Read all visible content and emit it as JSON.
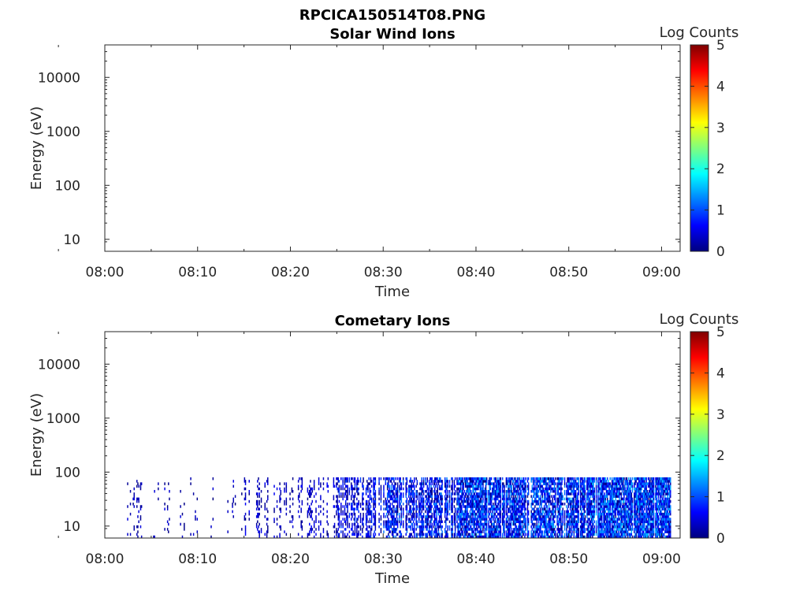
{
  "figure": {
    "title": "RPCICA150514T08.PNG"
  },
  "colors": {
    "colormap": [
      "#00007f",
      "#0000ff",
      "#007fff",
      "#00ffff",
      "#7fff7f",
      "#ffff00",
      "#ff7f00",
      "#ff0000",
      "#7f0000"
    ],
    "axis": "#262626"
  },
  "chart_data": [
    {
      "type": "heatmap",
      "title": "Solar Wind Ions",
      "xlabel": "Time",
      "ylabel": "Energy (eV)",
      "x_ticks": [
        "08:00",
        "08:10",
        "08:20",
        "08:30",
        "08:40",
        "08:50",
        "09:00"
      ],
      "y_ticks": [
        "10",
        "100",
        "1000",
        "10000"
      ],
      "y_scale": "log",
      "xlim": [
        "08:00",
        "09:02"
      ],
      "ylim": [
        6,
        40000
      ],
      "colorbar": {
        "label": "Log Counts",
        "range": [
          0,
          5
        ],
        "ticks": [
          "0",
          "1",
          "2",
          "3",
          "4",
          "5"
        ]
      },
      "grid": false,
      "energy_range": [
        6,
        80
      ],
      "activity": []
    },
    {
      "type": "heatmap",
      "title": "Cometary Ions",
      "xlabel": "Time",
      "ylabel": "Energy (eV)",
      "x_ticks": [
        "08:00",
        "08:10",
        "08:20",
        "08:30",
        "08:40",
        "08:50",
        "09:00"
      ],
      "y_ticks": [
        "10",
        "100",
        "1000",
        "10000"
      ],
      "y_scale": "log",
      "xlim": [
        "08:00",
        "09:02"
      ],
      "ylim": [
        6,
        40000
      ],
      "colorbar": {
        "label": "Log Counts",
        "range": [
          0,
          5
        ],
        "ticks": [
          "0",
          "1",
          "2",
          "3",
          "4",
          "5"
        ]
      },
      "grid": false,
      "energy_range": [
        6,
        80
      ],
      "activity": [
        {
          "t_start": "08:02",
          "t_end": "08:04",
          "density": 0.25,
          "log_counts": [
            0.0,
            0.5
          ]
        },
        {
          "t_start": "08:05",
          "t_end": "08:07",
          "density": 0.15,
          "log_counts": [
            0.0,
            0.5
          ]
        },
        {
          "t_start": "08:08",
          "t_end": "08:12",
          "density": 0.12,
          "log_counts": [
            0.0,
            0.5
          ]
        },
        {
          "t_start": "08:12",
          "t_end": "08:15",
          "density": 0.15,
          "log_counts": [
            0.0,
            0.5
          ]
        },
        {
          "t_start": "08:15",
          "t_end": "08:19",
          "density": 0.3,
          "log_counts": [
            0.0,
            0.6
          ]
        },
        {
          "t_start": "08:19",
          "t_end": "08:22",
          "density": 0.25,
          "log_counts": [
            0.0,
            0.6
          ]
        },
        {
          "t_start": "08:22",
          "t_end": "08:25",
          "density": 0.35,
          "log_counts": [
            0.0,
            0.7
          ]
        },
        {
          "t_start": "08:25",
          "t_end": "08:30",
          "density": 0.55,
          "log_counts": [
            0.0,
            1.0
          ]
        },
        {
          "t_start": "08:30",
          "t_end": "08:38",
          "density": 0.65,
          "log_counts": [
            0.0,
            1.3
          ]
        },
        {
          "t_start": "08:38",
          "t_end": "08:45",
          "density": 0.8,
          "log_counts": [
            0.0,
            1.5
          ]
        },
        {
          "t_start": "08:45",
          "t_end": "08:52",
          "density": 0.75,
          "log_counts": [
            0.0,
            1.5
          ]
        },
        {
          "t_start": "08:52",
          "t_end": "09:01",
          "density": 0.85,
          "log_counts": [
            0.0,
            1.6
          ]
        }
      ]
    }
  ]
}
